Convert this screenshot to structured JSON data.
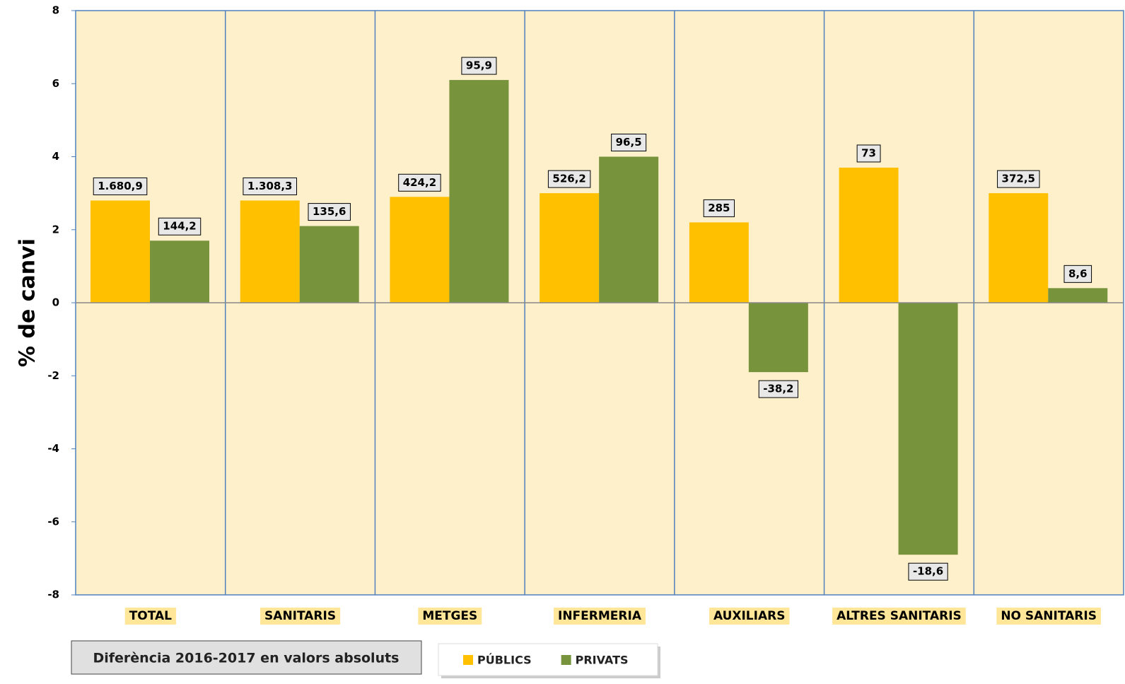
{
  "chart_data": {
    "type": "bar",
    "categories": [
      "TOTAL",
      "SANITARIS",
      "METGES",
      "INFERMERIA",
      "AUXILIARS",
      "ALTRES SANITARIS",
      "NO SANITARIS"
    ],
    "series": [
      {
        "name": "PÚBLICS",
        "color": "#ffc000",
        "values": [
          2.8,
          2.8,
          2.9,
          3.0,
          2.2,
          3.7,
          3.0
        ],
        "absolute_labels": [
          "1.680,9",
          "1.308,3",
          "424,2",
          "526,2",
          "285",
          "73",
          "372,5"
        ]
      },
      {
        "name": "PRIVATS",
        "color": "#77933c",
        "values": [
          1.7,
          2.1,
          6.1,
          4.0,
          -1.9,
          -6.9,
          0.4
        ],
        "absolute_labels": [
          "144,2",
          "135,6",
          "95,9",
          "96,5",
          "-38,2",
          "-18,6",
          "8,6"
        ]
      }
    ],
    "ylabel": "% de  canvi",
    "note": "Diferència  2016-2017 en valors absoluts",
    "ylim": [
      -8,
      8
    ],
    "yticks": [
      -8,
      -6,
      -4,
      -2,
      0,
      2,
      4,
      6,
      8
    ],
    "grid": false,
    "legend": "bottom"
  }
}
